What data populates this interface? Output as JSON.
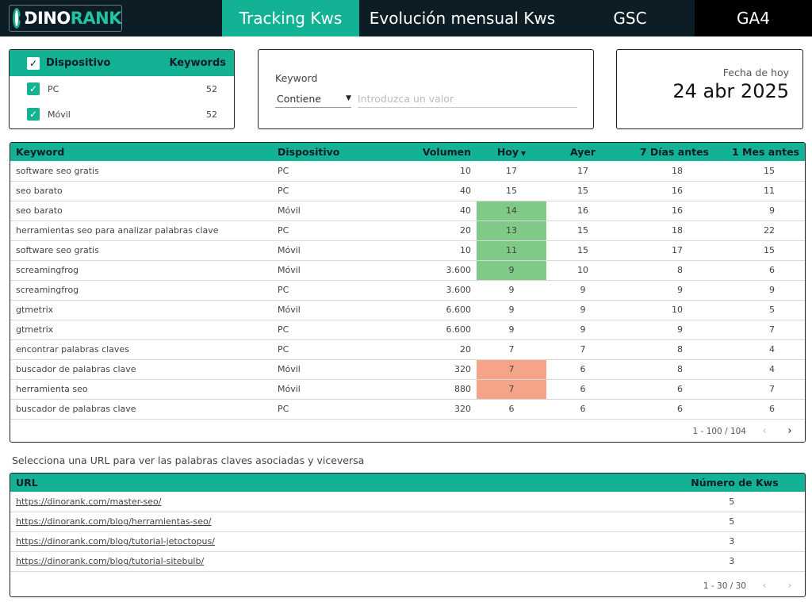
{
  "brand": {
    "name_part1": "DINO",
    "name_part2": "RANK"
  },
  "nav": {
    "tabs": [
      {
        "label": "Tracking Kws",
        "active": true
      },
      {
        "label": "Evolución mensual Kws",
        "active": false
      },
      {
        "label": "GSC",
        "active": false
      },
      {
        "label": "GA4",
        "active": false
      }
    ]
  },
  "device_filter": {
    "header": {
      "label": "Dispositivo",
      "count_label": "Keywords"
    },
    "rows": [
      {
        "label": "PC",
        "count": "52"
      },
      {
        "label": "Móvil",
        "count": "52"
      }
    ]
  },
  "keyword_filter": {
    "label": "Keyword",
    "operator": "Contiene",
    "placeholder": "Introduzca un valor"
  },
  "date": {
    "label": "Fecha de hoy",
    "value": "24 abr 2025"
  },
  "tracking_table": {
    "columns": [
      "Keyword",
      "Dispositivo",
      "Volumen",
      "Hoy",
      "Ayer",
      "7 Días antes",
      "1 Mes antes"
    ],
    "rows": [
      {
        "keyword": "software seo gratis",
        "device": "PC",
        "volume": "10",
        "today": "17",
        "yesterday": "17",
        "week": "18",
        "month": "15",
        "highlight": ""
      },
      {
        "keyword": "seo barato",
        "device": "PC",
        "volume": "40",
        "today": "15",
        "yesterday": "15",
        "week": "16",
        "month": "11",
        "highlight": ""
      },
      {
        "keyword": "seo barato",
        "device": "Móvil",
        "volume": "40",
        "today": "14",
        "yesterday": "16",
        "week": "16",
        "month": "9",
        "highlight": "good"
      },
      {
        "keyword": "herramientas seo para analizar palabras clave",
        "device": "PC",
        "volume": "20",
        "today": "13",
        "yesterday": "15",
        "week": "18",
        "month": "22",
        "highlight": "good"
      },
      {
        "keyword": "software seo gratis",
        "device": "Móvil",
        "volume": "10",
        "today": "11",
        "yesterday": "15",
        "week": "17",
        "month": "15",
        "highlight": "good"
      },
      {
        "keyword": "screamingfrog",
        "device": "Móvil",
        "volume": "3.600",
        "today": "9",
        "yesterday": "10",
        "week": "8",
        "month": "6",
        "highlight": "good"
      },
      {
        "keyword": "screamingfrog",
        "device": "PC",
        "volume": "3.600",
        "today": "9",
        "yesterday": "9",
        "week": "9",
        "month": "9",
        "highlight": ""
      },
      {
        "keyword": "gtmetrix",
        "device": "Móvil",
        "volume": "6.600",
        "today": "9",
        "yesterday": "9",
        "week": "10",
        "month": "5",
        "highlight": ""
      },
      {
        "keyword": "gtmetrix",
        "device": "PC",
        "volume": "6.600",
        "today": "9",
        "yesterday": "9",
        "week": "9",
        "month": "7",
        "highlight": ""
      },
      {
        "keyword": "encontrar palabras claves",
        "device": "PC",
        "volume": "20",
        "today": "7",
        "yesterday": "7",
        "week": "8",
        "month": "4",
        "highlight": ""
      },
      {
        "keyword": "buscador de palabras clave",
        "device": "Móvil",
        "volume": "320",
        "today": "7",
        "yesterday": "6",
        "week": "8",
        "month": "4",
        "highlight": "bad"
      },
      {
        "keyword": "herramienta seo",
        "device": "Móvil",
        "volume": "880",
        "today": "7",
        "yesterday": "6",
        "week": "6",
        "month": "7",
        "highlight": "bad"
      },
      {
        "keyword": "buscador de palabras clave",
        "device": "PC",
        "volume": "320",
        "today": "6",
        "yesterday": "6",
        "week": "6",
        "month": "6",
        "highlight": ""
      }
    ],
    "pagination": "1 - 100 / 104"
  },
  "url_hint": "Selecciona una URL para ver las palabras claves asociadas y viceversa",
  "url_table": {
    "columns": [
      "URL",
      "Número de Kws"
    ],
    "rows": [
      {
        "url": "https://dinorank.com/master-seo/",
        "count": "5"
      },
      {
        "url": "https://dinorank.com/blog/herramientas-seo/",
        "count": "5"
      },
      {
        "url": "https://dinorank.com/blog/tutorial-jetoctopus/",
        "count": "3"
      },
      {
        "url": "https://dinorank.com/blog/tutorial-sitebulb/",
        "count": "3"
      }
    ],
    "pagination": "1 - 30 / 30"
  }
}
